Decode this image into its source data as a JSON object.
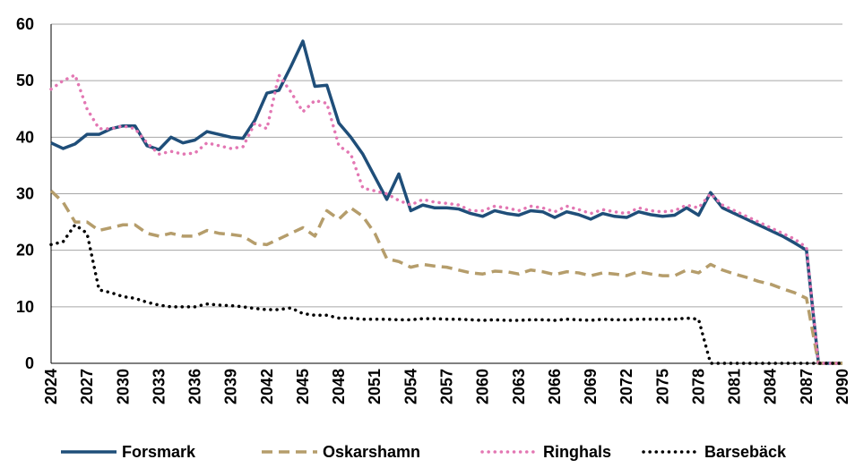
{
  "chart_data": {
    "type": "line",
    "x": [
      2024,
      2025,
      2026,
      2027,
      2028,
      2029,
      2030,
      2031,
      2032,
      2033,
      2034,
      2035,
      2036,
      2037,
      2038,
      2039,
      2040,
      2041,
      2042,
      2043,
      2044,
      2045,
      2046,
      2047,
      2048,
      2049,
      2050,
      2051,
      2052,
      2053,
      2054,
      2055,
      2056,
      2057,
      2058,
      2059,
      2060,
      2061,
      2062,
      2063,
      2064,
      2065,
      2066,
      2067,
      2068,
      2069,
      2070,
      2071,
      2072,
      2073,
      2074,
      2075,
      2076,
      2077,
      2078,
      2079,
      2080,
      2081,
      2082,
      2083,
      2084,
      2085,
      2086,
      2087,
      2088,
      2089,
      2090
    ],
    "xlim": [
      2024,
      2090
    ],
    "xticks": [
      2024,
      2027,
      2030,
      2033,
      2036,
      2039,
      2042,
      2045,
      2048,
      2051,
      2054,
      2057,
      2060,
      2063,
      2066,
      2069,
      2072,
      2075,
      2078,
      2081,
      2084,
      2087,
      2090
    ],
    "ylim": [
      0,
      60
    ],
    "yticks": [
      0,
      10,
      20,
      30,
      40,
      50,
      60
    ],
    "grid": true,
    "legend": "bottom",
    "series": [
      {
        "name": "Forsmark",
        "color": "#1f4e79",
        "line_style": "solid",
        "values": [
          39,
          38,
          38.8,
          40.5,
          40.5,
          41.5,
          42,
          42,
          38.5,
          37.8,
          40,
          39,
          39.5,
          41,
          40.5,
          40,
          39.8,
          43,
          47.8,
          48.3,
          52.5,
          57,
          49,
          49.2,
          42.5,
          40,
          37,
          33,
          29,
          33.5,
          27,
          28,
          27.5,
          27.5,
          27.3,
          26.5,
          26,
          27,
          26.5,
          26.2,
          27,
          26.8,
          25.8,
          26.8,
          26.3,
          25.5,
          26.5,
          26,
          25.8,
          26.8,
          26.3,
          26,
          26.2,
          27.5,
          26.2,
          30.2,
          27.5,
          26.5,
          25.5,
          24.5,
          23.5,
          22.5,
          21.3,
          20,
          0,
          0,
          0
        ]
      },
      {
        "name": "Oskarshamn",
        "color": "#b59d6b",
        "line_style": "dashed",
        "values": [
          30.5,
          28.5,
          25,
          25,
          23.5,
          24,
          24.5,
          24.5,
          23,
          22.5,
          23,
          22.5,
          22.5,
          23.5,
          23,
          22.8,
          22.5,
          21.2,
          21,
          22,
          23,
          24,
          22.5,
          27,
          25.5,
          27.5,
          26,
          23,
          18.5,
          18,
          17,
          17.5,
          17.2,
          17,
          16.5,
          16,
          15.8,
          16.3,
          16.2,
          15.8,
          16.5,
          16.2,
          15.7,
          16.2,
          16,
          15.5,
          16,
          15.8,
          15.5,
          16.2,
          15.8,
          15.5,
          15.5,
          16.5,
          16,
          17.5,
          16.5,
          15.8,
          15.2,
          14.5,
          14,
          13.2,
          12.5,
          11.5,
          0,
          0,
          0
        ]
      },
      {
        "name": "Ringhals",
        "color": "#e377b3",
        "line_style": "dotted",
        "values": [
          48.5,
          50,
          51,
          45,
          41.5,
          41.5,
          42,
          41.5,
          39,
          37,
          37.5,
          37,
          37.2,
          39,
          38.5,
          38,
          38.3,
          42.5,
          41.5,
          51,
          48,
          44.5,
          46.5,
          46,
          38.5,
          37,
          31,
          30.5,
          30,
          28.8,
          28,
          29,
          28.5,
          28.3,
          28,
          27,
          27,
          27.8,
          27.5,
          27,
          27.8,
          27.5,
          26.8,
          27.8,
          27.2,
          26.5,
          27.2,
          26.8,
          26.5,
          27.5,
          27,
          26.8,
          27,
          28,
          27.5,
          30,
          28,
          27,
          26,
          25,
          24,
          23,
          22,
          20.5,
          0,
          0,
          0
        ]
      },
      {
        "name": "Barsebäck",
        "color": "#000000",
        "line_style": "dotted",
        "values": [
          21,
          21.5,
          24.5,
          23,
          13,
          12.5,
          11.8,
          11.5,
          10.8,
          10.3,
          10,
          10,
          10,
          10.5,
          10.3,
          10.2,
          10,
          9.7,
          9.5,
          9.5,
          9.8,
          8.8,
          8.5,
          8.5,
          8,
          8,
          7.8,
          7.8,
          7.8,
          7.7,
          7.7,
          7.9,
          7.9,
          7.8,
          7.8,
          7.7,
          7.6,
          7.7,
          7.6,
          7.6,
          7.7,
          7.7,
          7.6,
          7.8,
          7.7,
          7.6,
          7.8,
          7.7,
          7.7,
          7.8,
          7.8,
          7.8,
          7.8,
          8,
          7.8,
          0,
          0,
          0,
          0,
          0,
          0,
          0,
          0,
          0,
          0,
          0,
          0
        ]
      }
    ]
  }
}
